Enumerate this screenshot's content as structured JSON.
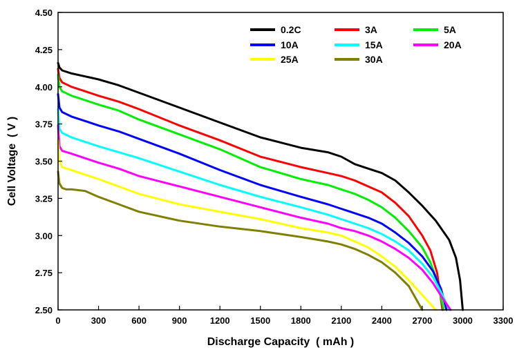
{
  "chart_data": {
    "type": "line",
    "title": "",
    "xlabel": "Discharge Capacity  ( mAh )",
    "ylabel": "Cell Voltage  ( V )",
    "xlim": [
      0,
      3300
    ],
    "ylim": [
      2.5,
      4.5
    ],
    "xticks": [
      0,
      300,
      600,
      900,
      1200,
      1500,
      1800,
      2100,
      2400,
      2700,
      3000,
      3300
    ],
    "yticks": [
      2.5,
      2.75,
      3.0,
      3.25,
      3.5,
      3.75,
      4.0,
      4.25,
      4.5
    ],
    "ytick_labels": [
      "2.50",
      "2.75",
      "3.00",
      "3.25",
      "3.50",
      "3.75",
      "4.00",
      "4.25",
      "4.50"
    ],
    "grid": false,
    "legend_position": "top-right",
    "series": [
      {
        "name": "0.2C",
        "color": "#000000",
        "x": [
          0,
          10,
          30,
          100,
          200,
          300,
          450,
          600,
          900,
          1200,
          1500,
          1800,
          2000,
          2100,
          2200,
          2300,
          2400,
          2500,
          2600,
          2700,
          2800,
          2900,
          2950,
          2980,
          3000
        ],
        "y": [
          4.16,
          4.13,
          4.11,
          4.09,
          4.07,
          4.05,
          4.01,
          3.96,
          3.86,
          3.76,
          3.66,
          3.59,
          3.56,
          3.53,
          3.48,
          3.45,
          3.42,
          3.37,
          3.29,
          3.2,
          3.1,
          2.97,
          2.85,
          2.7,
          2.5
        ]
      },
      {
        "name": "3A",
        "color": "#ff0000",
        "x": [
          0,
          10,
          30,
          100,
          200,
          300,
          450,
          600,
          900,
          1200,
          1500,
          1800,
          2000,
          2100,
          2200,
          2300,
          2400,
          2500,
          2600,
          2700,
          2760,
          2810,
          2850
        ],
        "y": [
          4.12,
          4.06,
          4.03,
          4.0,
          3.97,
          3.94,
          3.9,
          3.85,
          3.74,
          3.64,
          3.53,
          3.46,
          3.42,
          3.4,
          3.37,
          3.33,
          3.29,
          3.22,
          3.13,
          3.0,
          2.9,
          2.75,
          2.5
        ]
      },
      {
        "name": "5A",
        "color": "#00ee00",
        "x": [
          0,
          10,
          30,
          100,
          200,
          300,
          450,
          600,
          900,
          1200,
          1500,
          1800,
          2000,
          2100,
          2200,
          2300,
          2400,
          2500,
          2600,
          2700,
          2760,
          2810,
          2860
        ],
        "y": [
          4.08,
          4.0,
          3.97,
          3.94,
          3.91,
          3.88,
          3.84,
          3.78,
          3.68,
          3.58,
          3.46,
          3.38,
          3.34,
          3.31,
          3.28,
          3.24,
          3.19,
          3.12,
          3.03,
          2.92,
          2.82,
          2.7,
          2.5
        ]
      },
      {
        "name": "10A",
        "color": "#0000ff",
        "x": [
          0,
          10,
          30,
          100,
          200,
          300,
          450,
          600,
          900,
          1200,
          1500,
          1800,
          2000,
          2100,
          2200,
          2300,
          2400,
          2500,
          2600,
          2700,
          2780,
          2840,
          2880
        ],
        "y": [
          3.95,
          3.86,
          3.83,
          3.8,
          3.77,
          3.74,
          3.7,
          3.65,
          3.55,
          3.44,
          3.34,
          3.26,
          3.21,
          3.18,
          3.15,
          3.12,
          3.08,
          3.02,
          2.95,
          2.86,
          2.76,
          2.64,
          2.5
        ]
      },
      {
        "name": "15A",
        "color": "#00ffff",
        "x": [
          0,
          10,
          30,
          100,
          200,
          300,
          450,
          600,
          900,
          1200,
          1500,
          1800,
          2000,
          2100,
          2200,
          2300,
          2400,
          2500,
          2600,
          2700,
          2780,
          2850,
          2900
        ],
        "y": [
          3.85,
          3.72,
          3.69,
          3.66,
          3.63,
          3.6,
          3.56,
          3.52,
          3.43,
          3.34,
          3.26,
          3.19,
          3.14,
          3.11,
          3.08,
          3.05,
          3.01,
          2.96,
          2.9,
          2.81,
          2.72,
          2.6,
          2.5
        ]
      },
      {
        "name": "20A",
        "color": "#ff00ff",
        "x": [
          0,
          10,
          30,
          100,
          200,
          300,
          450,
          600,
          900,
          1200,
          1500,
          1800,
          2000,
          2100,
          2200,
          2300,
          2400,
          2500,
          2600,
          2700,
          2780,
          2850,
          2910
        ],
        "y": [
          3.74,
          3.6,
          3.57,
          3.55,
          3.52,
          3.49,
          3.45,
          3.4,
          3.33,
          3.26,
          3.19,
          3.12,
          3.08,
          3.05,
          3.03,
          3.0,
          2.96,
          2.91,
          2.85,
          2.77,
          2.68,
          2.58,
          2.5
        ]
      },
      {
        "name": "25A",
        "color": "#ffff00",
        "x": [
          0,
          10,
          30,
          100,
          200,
          300,
          450,
          600,
          900,
          1200,
          1500,
          1800,
          2000,
          2100,
          2200,
          2300,
          2400,
          2500,
          2600,
          2650,
          2700,
          2760,
          2800
        ],
        "y": [
          3.64,
          3.5,
          3.46,
          3.44,
          3.41,
          3.38,
          3.33,
          3.28,
          3.21,
          3.16,
          3.11,
          3.05,
          3.02,
          3.0,
          2.96,
          2.92,
          2.86,
          2.79,
          2.7,
          2.65,
          2.6,
          2.54,
          2.5
        ]
      },
      {
        "name": "30A",
        "color": "#808000",
        "x": [
          0,
          10,
          30,
          60,
          100,
          200,
          300,
          450,
          600,
          900,
          1200,
          1500,
          1800,
          2000,
          2100,
          2200,
          2300,
          2400,
          2500,
          2600,
          2700
        ],
        "y": [
          3.43,
          3.35,
          3.32,
          3.31,
          3.31,
          3.3,
          3.26,
          3.21,
          3.16,
          3.1,
          3.06,
          3.03,
          2.99,
          2.96,
          2.94,
          2.91,
          2.87,
          2.82,
          2.75,
          2.66,
          2.5
        ]
      }
    ]
  }
}
